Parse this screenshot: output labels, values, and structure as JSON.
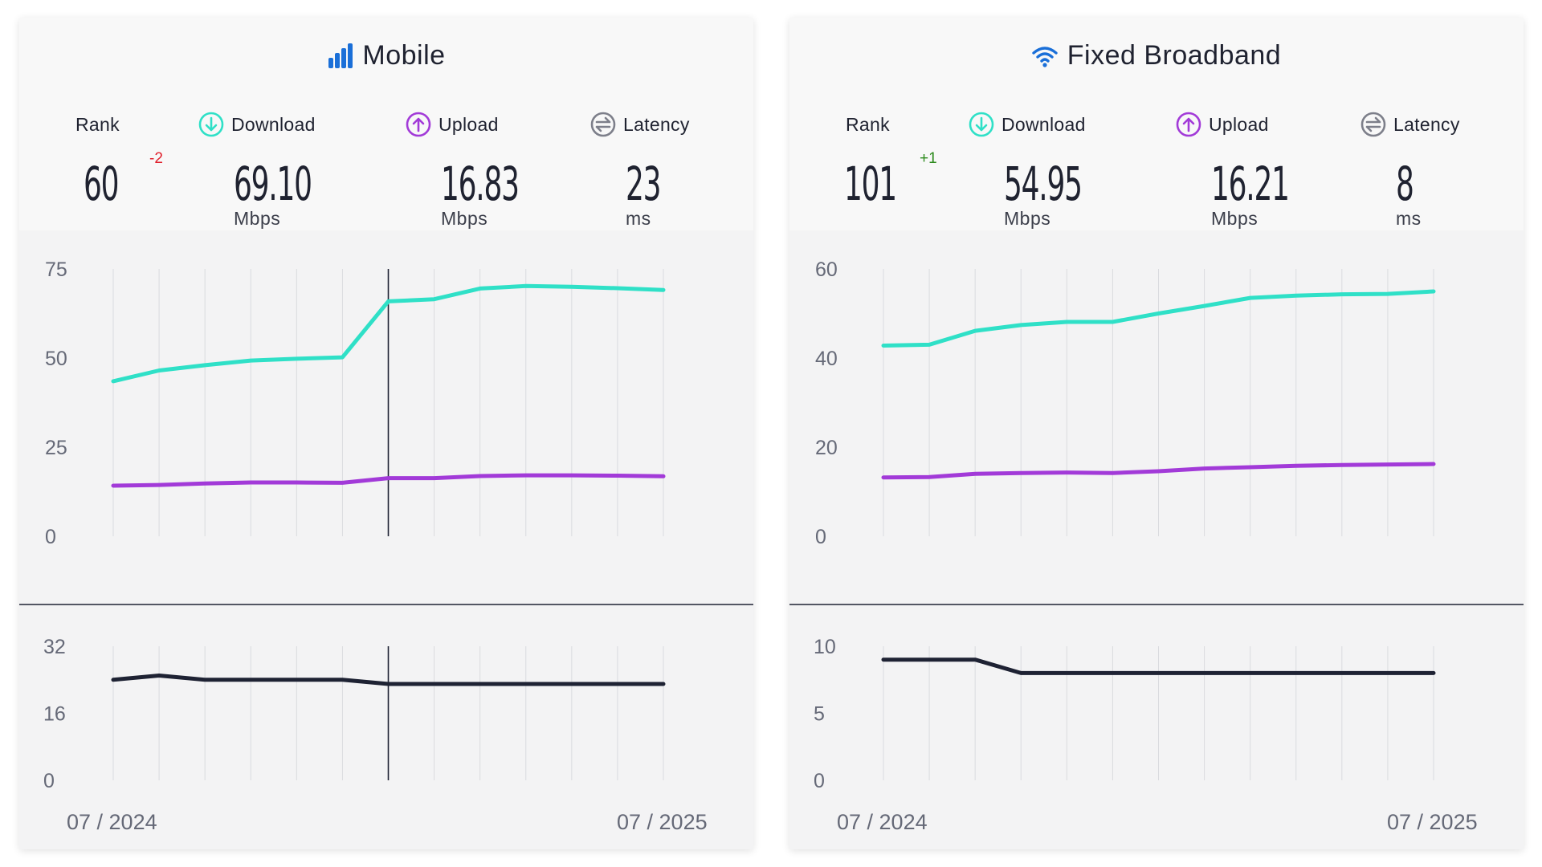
{
  "colors": {
    "download": "#2fe0c7",
    "upload": "#a23ad8",
    "latency": "#1e2233",
    "mobile_icon": "#1a6fd8",
    "rank_down": "#e0202c",
    "rank_up": "#2c8a1c",
    "latency_icon": "#7d7f8a"
  },
  "labels": {
    "rank": "Rank",
    "download": "Download",
    "upload": "Upload",
    "latency": "Latency",
    "unit_speed": "Mbps",
    "unit_latency": "ms"
  },
  "panels": [
    {
      "title": "Mobile",
      "icon": "signal-bars-icon",
      "rank": "60",
      "rank_change": "-2",
      "download": "69.10",
      "upload": "16.83",
      "latency": "23"
    },
    {
      "title": "Fixed Broadband",
      "icon": "wifi-icon",
      "rank": "101",
      "rank_change": "+1",
      "download": "54.95",
      "upload": "16.21",
      "latency": "8"
    }
  ],
  "chart_data": [
    {
      "type": "line",
      "title": "Mobile",
      "x": [
        "07 / 2024",
        "",
        "",
        "",
        "",
        "",
        "",
        "",
        "",
        "",
        "",
        "",
        "07 / 2025"
      ],
      "y_ticks": [
        0,
        25,
        50,
        75
      ],
      "ylim": [
        0,
        75
      ],
      "series": [
        {
          "name": "Download",
          "values": [
            43.5,
            46.5,
            48,
            49.3,
            49.8,
            50.2,
            65.9,
            66.5,
            69.5,
            70.2,
            70.0,
            69.6,
            69.1
          ]
        },
        {
          "name": "Upload",
          "values": [
            14.2,
            14.4,
            14.8,
            15.1,
            15.1,
            15.0,
            16.3,
            16.3,
            16.9,
            17.1,
            17.1,
            17.0,
            16.83
          ]
        }
      ],
      "highlight_index": 6,
      "latency": {
        "y_ticks": [
          0,
          16,
          32
        ],
        "ylim": [
          0,
          32
        ],
        "values": [
          24,
          25,
          24,
          24,
          24,
          24,
          23,
          23,
          23,
          23,
          23,
          23,
          23
        ]
      },
      "x_labels": [
        "07 / 2024",
        "07 / 2025"
      ],
      "grid": true
    },
    {
      "type": "line",
      "title": "Fixed Broadband",
      "x": [
        "07 / 2024",
        "",
        "",
        "",
        "",
        "",
        "",
        "",
        "",
        "",
        "",
        "",
        "07 / 2025"
      ],
      "y_ticks": [
        0,
        20,
        40,
        60
      ],
      "ylim": [
        0,
        60
      ],
      "series": [
        {
          "name": "Download",
          "values": [
            42.8,
            43.0,
            46.1,
            47.4,
            48.1,
            48.1,
            50.0,
            51.7,
            53.5,
            54.0,
            54.3,
            54.4,
            54.95
          ]
        },
        {
          "name": "Upload",
          "values": [
            13.2,
            13.3,
            14.0,
            14.2,
            14.3,
            14.2,
            14.6,
            15.2,
            15.5,
            15.8,
            16.0,
            16.1,
            16.21
          ]
        }
      ],
      "latency": {
        "y_ticks": [
          0,
          5,
          10
        ],
        "ylim": [
          0,
          10
        ],
        "values": [
          9,
          9,
          9,
          8,
          8,
          8,
          8,
          8,
          8,
          8,
          8,
          8,
          8
        ]
      },
      "x_labels": [
        "07 / 2024",
        "07 / 2025"
      ],
      "grid": true
    }
  ]
}
